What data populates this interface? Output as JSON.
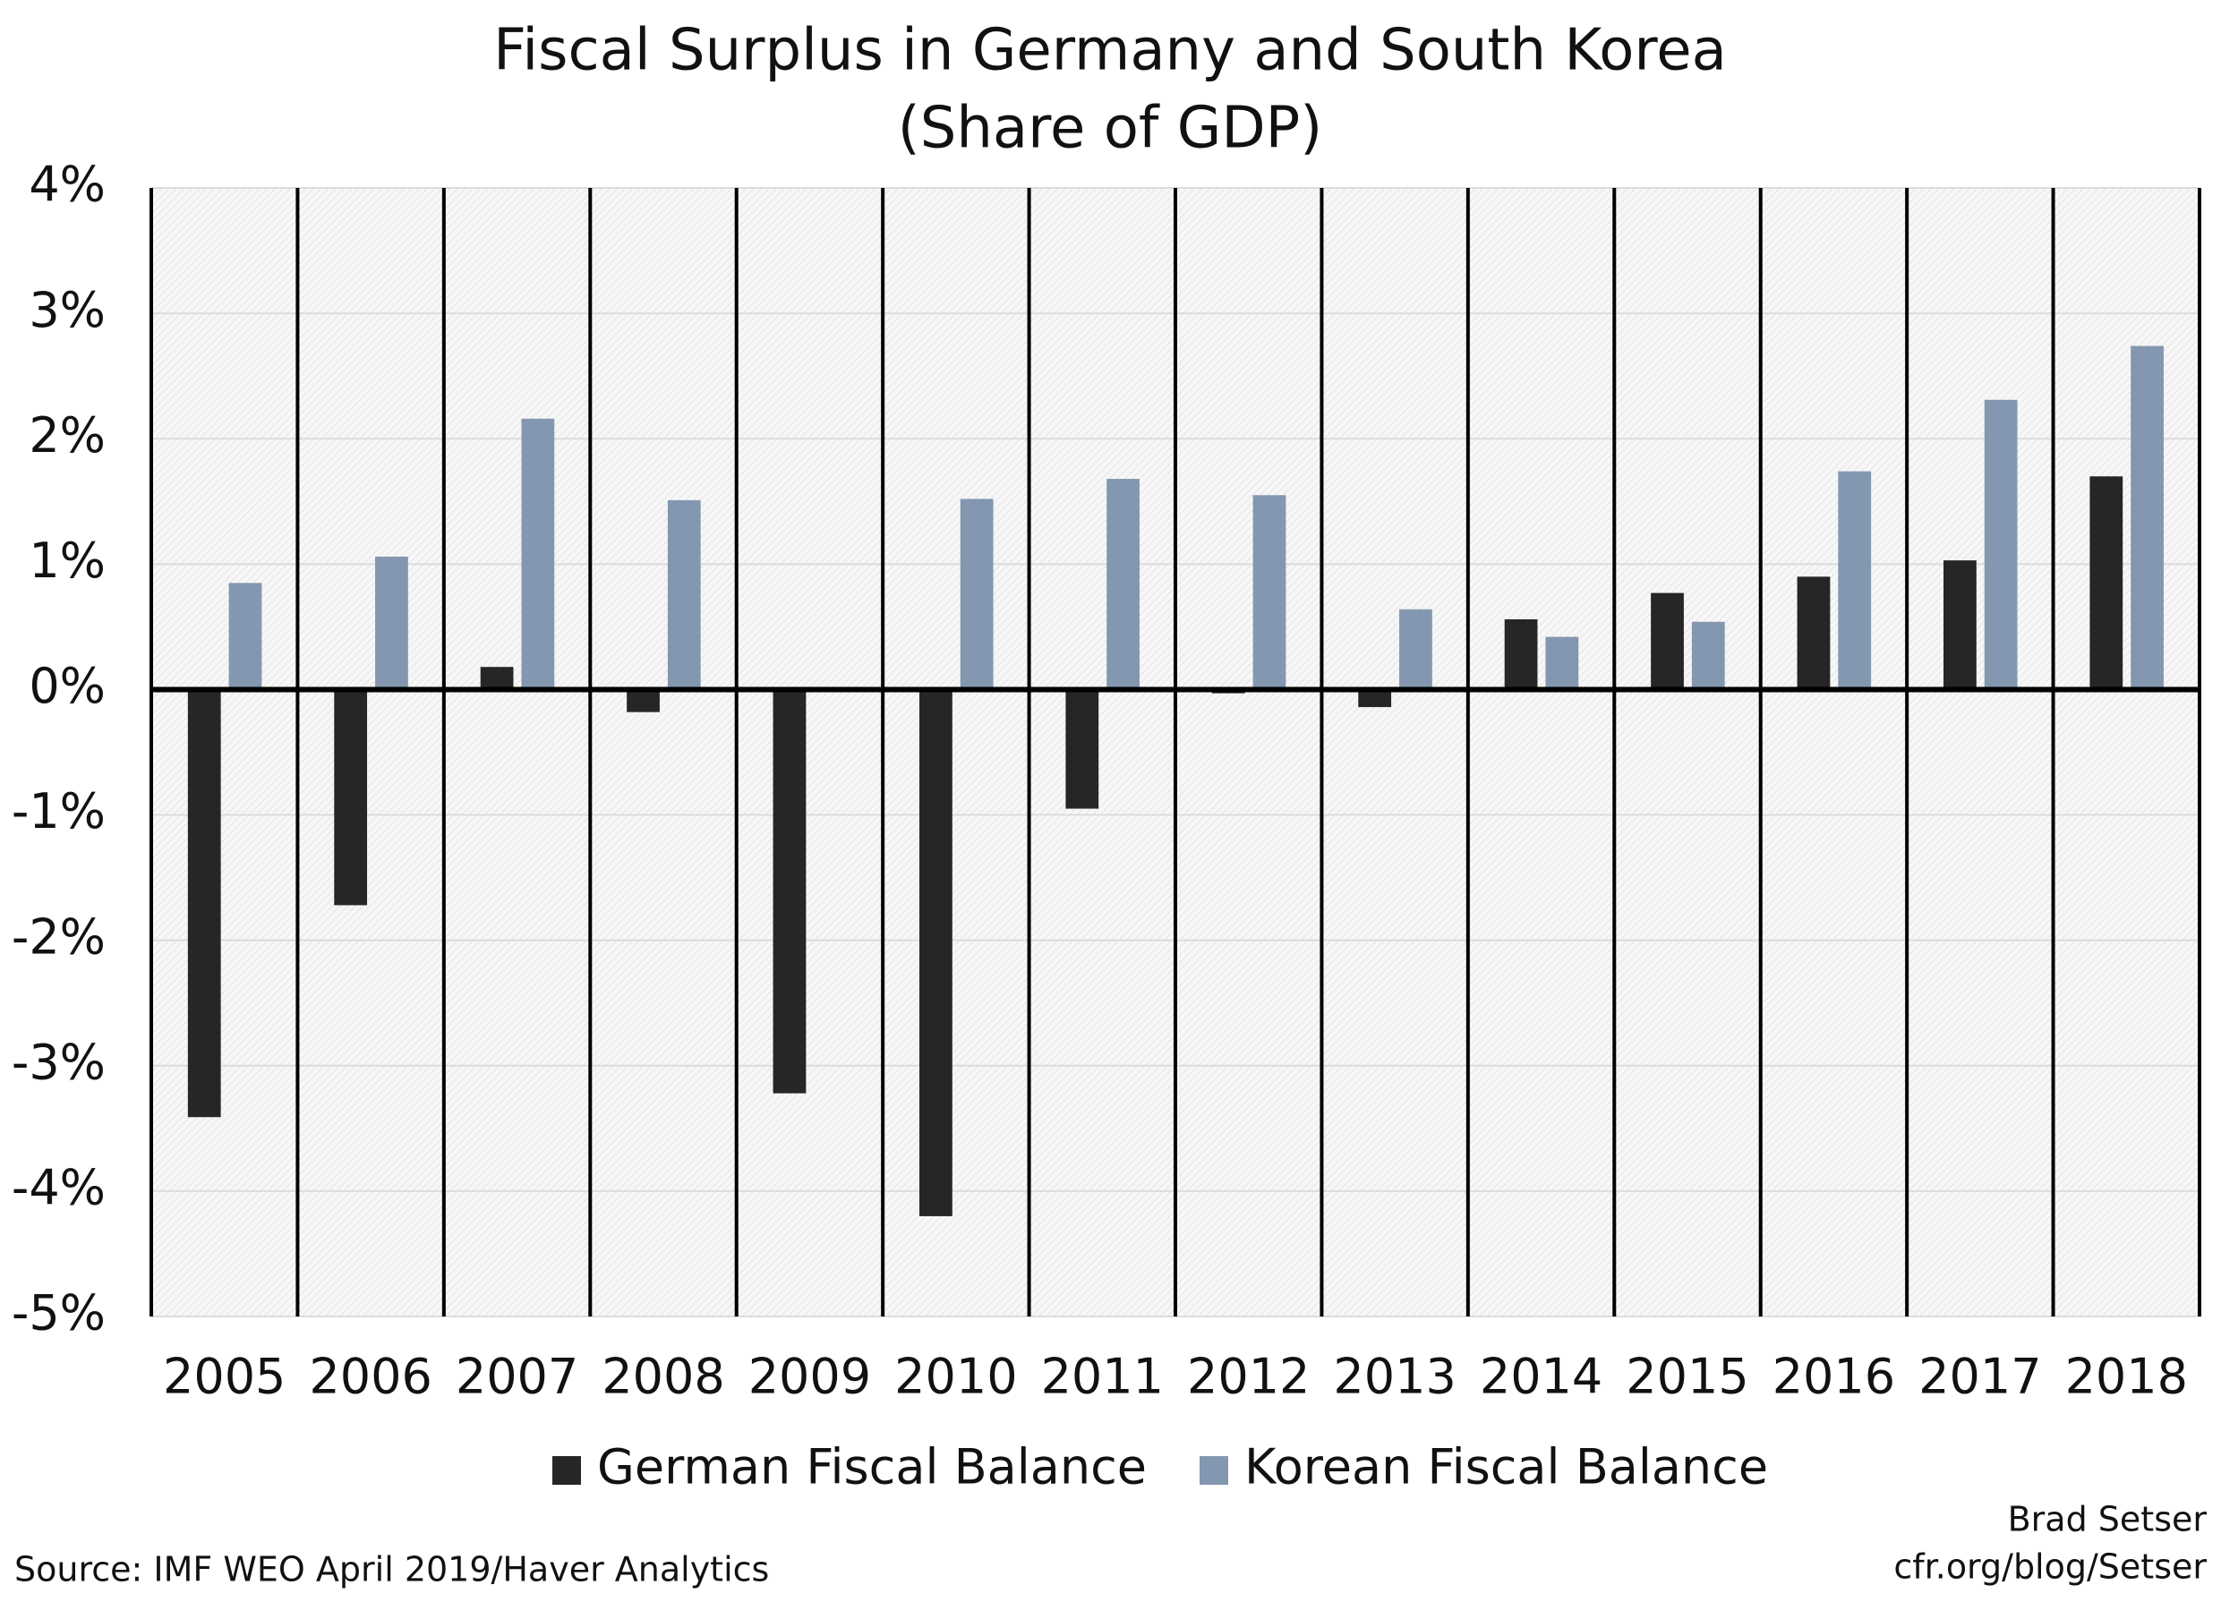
{
  "chart_data": {
    "type": "bar",
    "title": "Fiscal Surplus in Germany and South Korea",
    "subtitle": "(Share of GDP)",
    "categories": [
      "2005",
      "2006",
      "2007",
      "2008",
      "2009",
      "2010",
      "2011",
      "2012",
      "2013",
      "2014",
      "2015",
      "2016",
      "2017",
      "2018"
    ],
    "series": [
      {
        "name": "German Fiscal Balance",
        "color": "#262626",
        "values": [
          -3.41,
          -1.72,
          0.18,
          -0.18,
          -3.22,
          -4.2,
          -0.95,
          -0.03,
          -0.14,
          0.56,
          0.77,
          0.9,
          1.03,
          1.7
        ]
      },
      {
        "name": "Korean Fiscal Balance",
        "color": "#8497b0",
        "values": [
          0.85,
          1.06,
          2.16,
          1.51,
          null,
          1.52,
          1.68,
          1.55,
          0.64,
          0.42,
          0.54,
          1.74,
          2.31,
          2.74
        ]
      }
    ],
    "ylim": [
      -5,
      4
    ],
    "yticks": [
      {
        "value": -5,
        "label": "-5%"
      },
      {
        "value": -4,
        "label": "-4%"
      },
      {
        "value": -3,
        "label": "-3%"
      },
      {
        "value": -2,
        "label": "-2%"
      },
      {
        "value": -1,
        "label": "-1%"
      },
      {
        "value": 0,
        "label": "0%"
      },
      {
        "value": 1,
        "label": "1%"
      },
      {
        "value": 2,
        "label": "2%"
      },
      {
        "value": 3,
        "label": "3%"
      },
      {
        "value": 4,
        "label": "4%"
      }
    ],
    "grid": true,
    "legend": "bottom",
    "source": "Source: IMF WEO April 2019/Haver Analytics",
    "credit": [
      "Brad Setser",
      "cfr.org/blog/Setser"
    ]
  }
}
